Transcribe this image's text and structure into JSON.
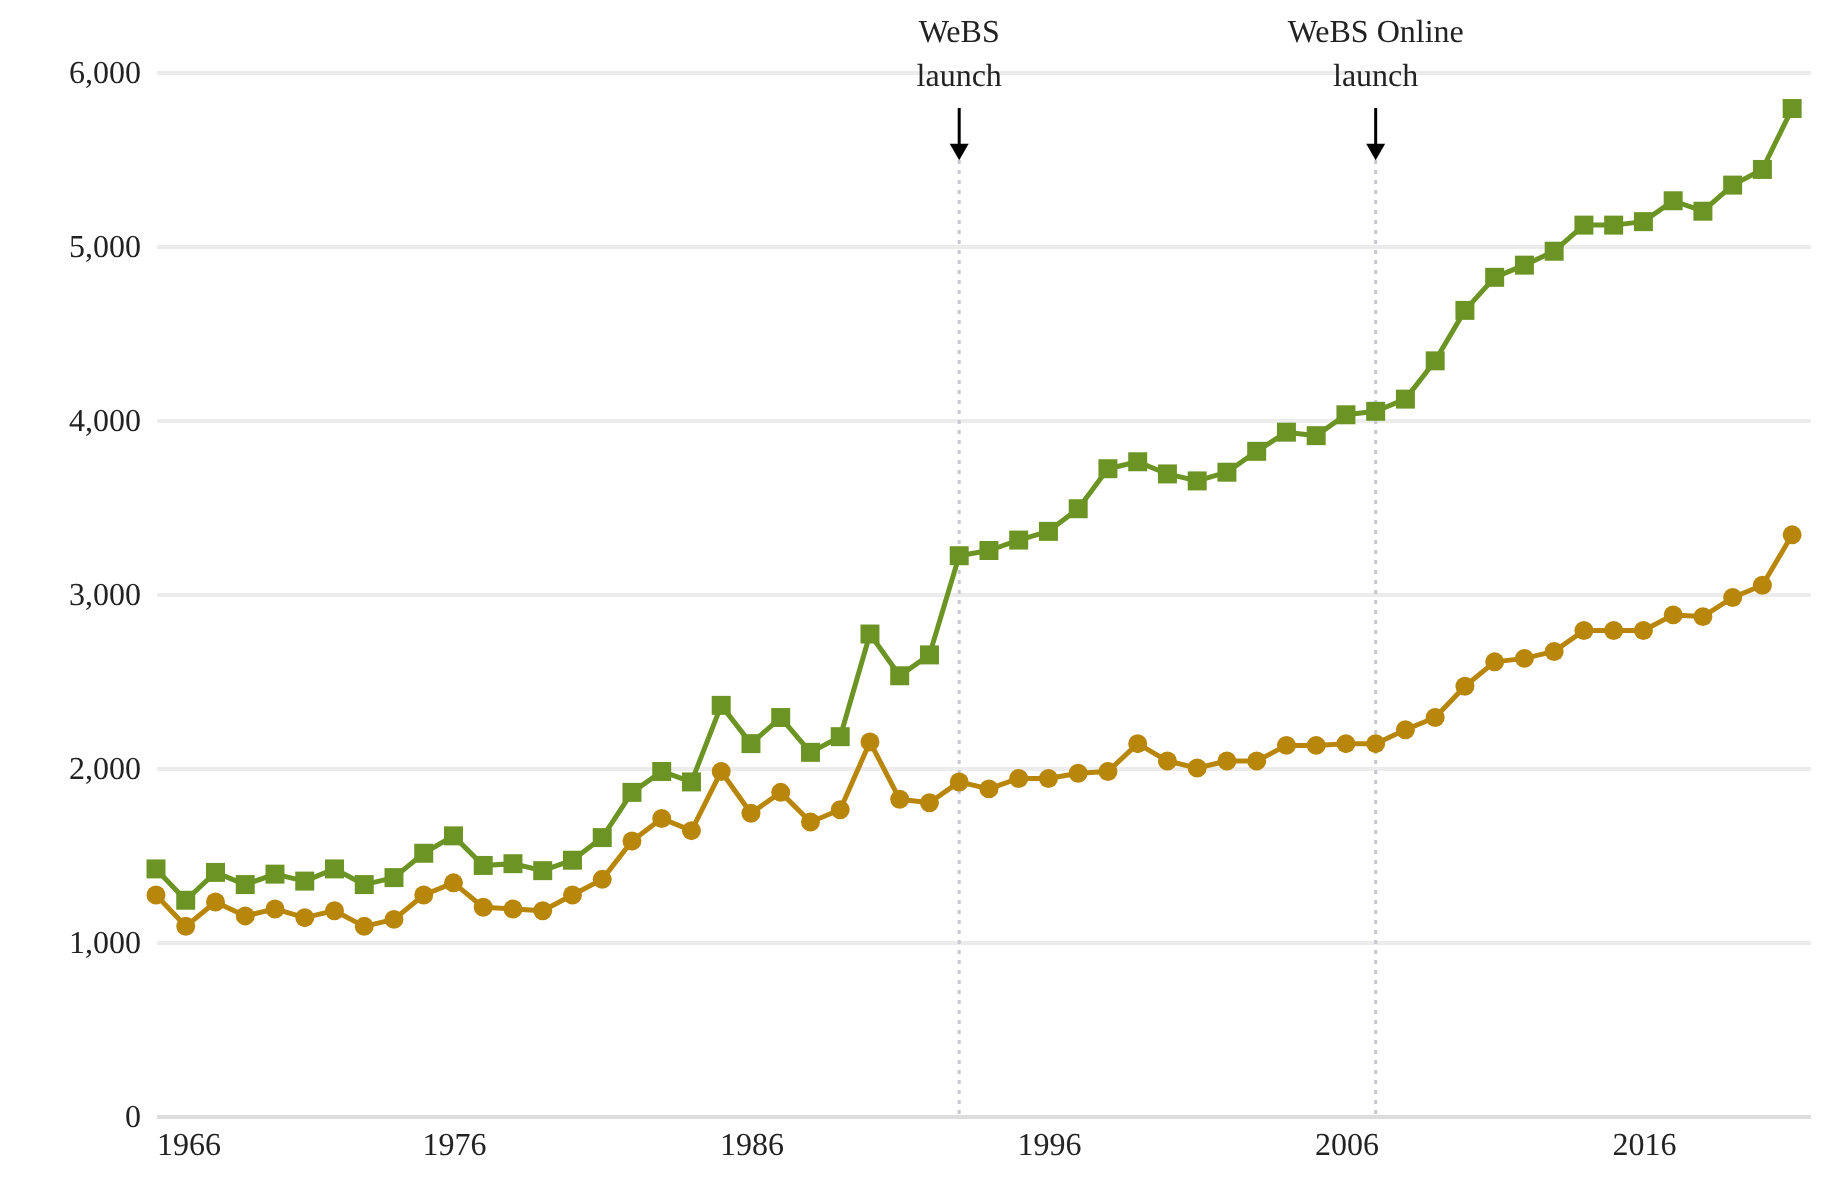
{
  "chart_data": {
    "type": "line",
    "x": [
      1966,
      1967,
      1968,
      1969,
      1970,
      1971,
      1972,
      1973,
      1974,
      1975,
      1976,
      1977,
      1978,
      1979,
      1980,
      1981,
      1982,
      1983,
      1984,
      1985,
      1986,
      1987,
      1988,
      1989,
      1990,
      1991,
      1992,
      1993,
      1994,
      1995,
      1996,
      1997,
      1998,
      1999,
      2000,
      2001,
      2002,
      2003,
      2004,
      2005,
      2006,
      2007,
      2008,
      2009,
      2010,
      2011,
      2012,
      2013,
      2014,
      2015,
      2016,
      2017,
      2018,
      2019,
      2020,
      2021
    ],
    "series": [
      {
        "color": "#6b9424",
        "marker": "square",
        "values": [
          1420,
          1240,
          1400,
          1330,
          1390,
          1350,
          1420,
          1330,
          1370,
          1510,
          1610,
          1440,
          1450,
          1410,
          1470,
          1600,
          1860,
          1980,
          1920,
          2360,
          2140,
          2290,
          2090,
          2180,
          2770,
          2530,
          2650,
          3220,
          3250,
          3310,
          3360,
          3490,
          3720,
          3760,
          3690,
          3650,
          3700,
          3820,
          3930,
          3910,
          4030,
          4050,
          4120,
          4340,
          4630,
          4820,
          4890,
          4970,
          5120,
          5120,
          5140,
          5260,
          5200,
          5350,
          5440,
          5790
        ]
      },
      {
        "color": "#b8860b",
        "marker": "circle",
        "values": [
          1270,
          1090,
          1230,
          1150,
          1190,
          1140,
          1180,
          1090,
          1130,
          1270,
          1340,
          1200,
          1190,
          1180,
          1270,
          1360,
          1580,
          1710,
          1640,
          1980,
          1740,
          1860,
          1690,
          1760,
          2150,
          1820,
          1800,
          1920,
          1880,
          1940,
          1940,
          1970,
          1980,
          2140,
          2040,
          2000,
          2040,
          2040,
          2130,
          2130,
          2140,
          2140,
          2220,
          2290,
          2470,
          2610,
          2630,
          2670,
          2790,
          2790,
          2790,
          2880,
          2870,
          2980,
          3050,
          3340
        ]
      }
    ],
    "xlim": [
      1966,
      2021.6
    ],
    "xticks": [
      1966,
      1976,
      1986,
      1996,
      2006,
      2016
    ],
    "ylim": [
      0,
      6000
    ],
    "yticks": [
      {
        "value": 0,
        "label": "0"
      },
      {
        "value": 1000,
        "label": "1,000"
      },
      {
        "value": 2000,
        "label": "2,000"
      },
      {
        "value": 3000,
        "label": "3,000"
      },
      {
        "value": 4000,
        "label": "4,000"
      },
      {
        "value": 5000,
        "label": "5,000"
      },
      {
        "value": 6000,
        "label": "6,000"
      }
    ],
    "grid": "y",
    "line_style": "solid",
    "ref_lines": [
      {
        "axis": "x",
        "value": 1993,
        "label": "WeBS\nlaunch",
        "color": "#c8c8d0",
        "line_style": "dotted"
      },
      {
        "axis": "x",
        "value": 2007,
        "label": "WeBS Online\nlaunch",
        "color": "#c8c8d0",
        "line_style": "dotted"
      }
    ]
  }
}
